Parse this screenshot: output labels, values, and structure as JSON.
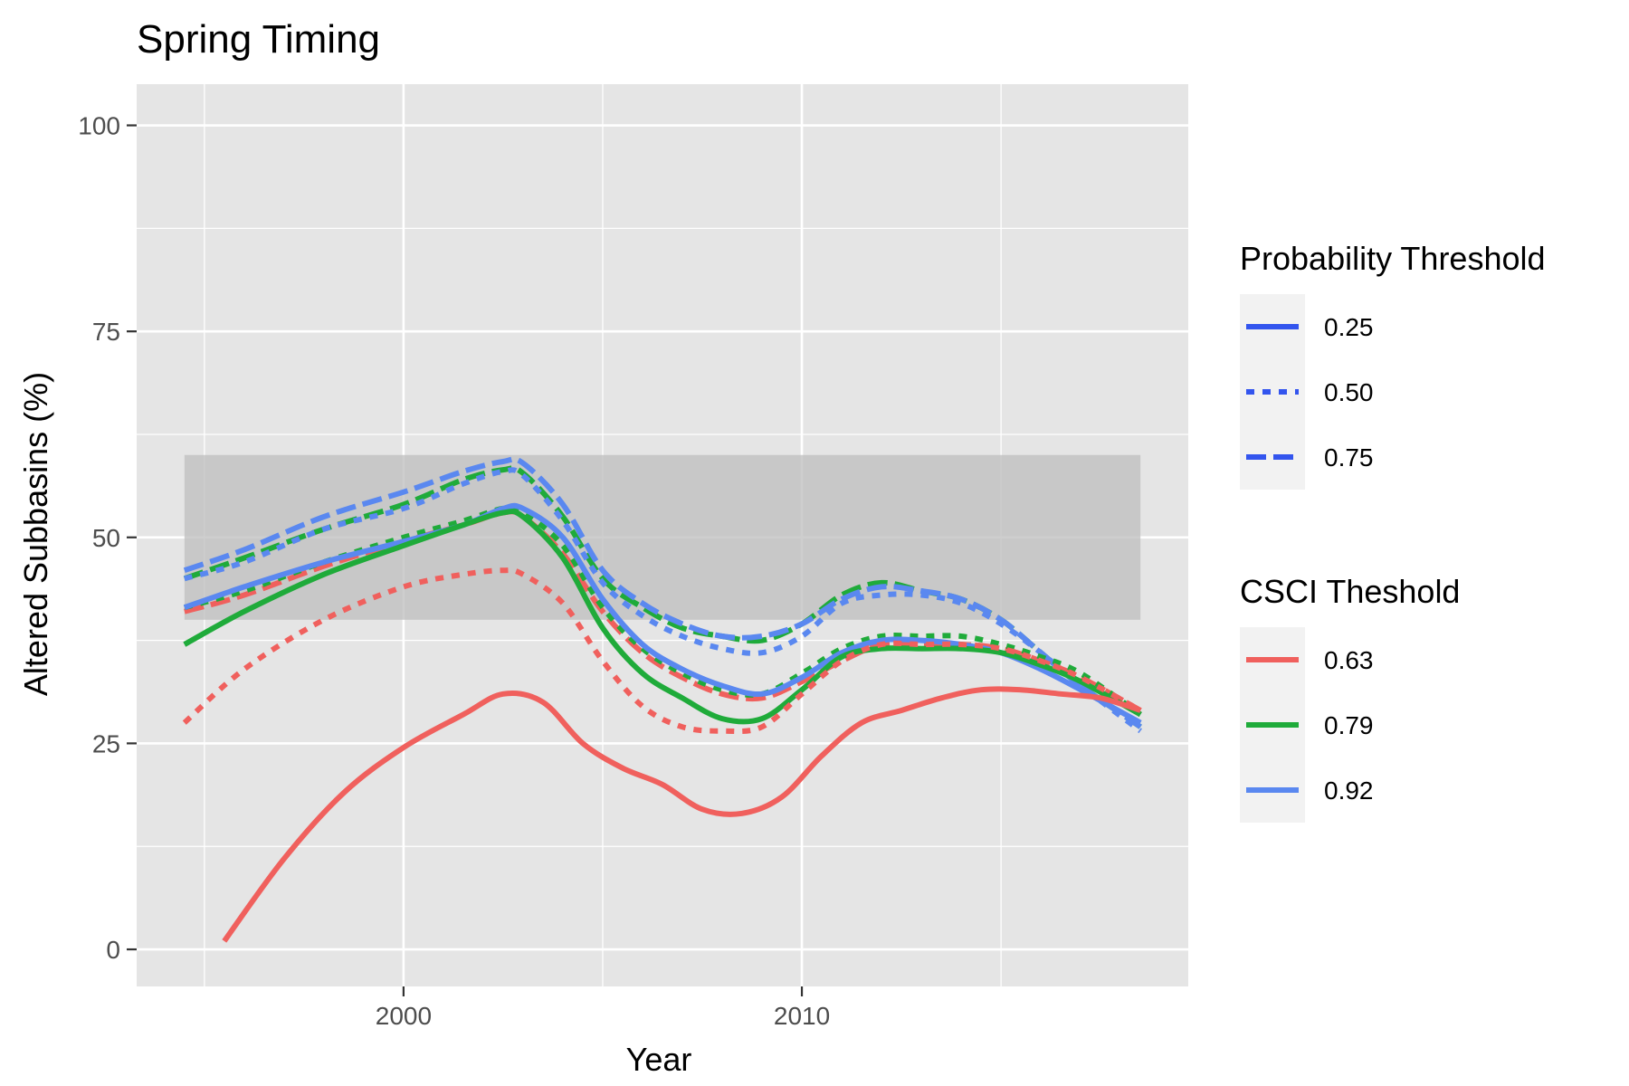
{
  "chart_data": {
    "type": "line",
    "title": "Spring Timing",
    "xlabel": "Year",
    "ylabel": "Altered Subbasins (%)",
    "xlim": [
      1993.3,
      2019.7
    ],
    "ylim": [
      -4.5,
      105
    ],
    "x_ticks": [
      2000,
      2010
    ],
    "x_tick_labels": [
      "2000",
      "2010"
    ],
    "y_ticks": [
      0,
      25,
      50,
      75,
      100
    ],
    "y_tick_labels": [
      "0",
      "25",
      "50",
      "75",
      "100"
    ],
    "grid": true,
    "background": "#e5e5e5",
    "reference_band": {
      "y_from": 40,
      "y_to": 60,
      "x_from": 1994.5,
      "x_to": 2018.5,
      "color": "#bdbdbd"
    },
    "legends": [
      {
        "title": "Probability Threshold",
        "placement": "right",
        "entries": [
          {
            "label": "0.25",
            "linetype": "solid",
            "color": "#3355ee"
          },
          {
            "label": "0.50",
            "linetype": "dotted",
            "color": "#3355ee"
          },
          {
            "label": "0.75",
            "linetype": "dashed",
            "color": "#3355ee"
          }
        ]
      },
      {
        "title": "CSCI Theshold",
        "placement": "right",
        "entries": [
          {
            "label": "0.63",
            "linetype": "solid",
            "color": "#f0605d"
          },
          {
            "label": "0.79",
            "linetype": "solid",
            "color": "#1fab3a"
          },
          {
            "label": "0.92",
            "linetype": "solid",
            "color": "#5a88f0"
          }
        ]
      }
    ],
    "series": [
      {
        "csci": "0.79",
        "probability": "0.75",
        "color": "#1fab3a",
        "linetype": "dashed",
        "x": [
          1994.5,
          1996,
          1998,
          2000,
          2001.5,
          2002.5,
          2003,
          2004,
          2005,
          2006,
          2007,
          2008,
          2009,
          2010,
          2011,
          2012,
          2013,
          2014,
          2015,
          2016,
          2017,
          2018.5
        ],
        "y": [
          45,
          47.5,
          51,
          54,
          57,
          58.2,
          57.8,
          52.5,
          45,
          41.5,
          39,
          38,
          37.5,
          39.5,
          43,
          44.5,
          43.5,
          42.5,
          40,
          36,
          32,
          27
        ]
      },
      {
        "csci": "0.92",
        "probability": "0.75",
        "color": "#5a88f0",
        "linetype": "dashed",
        "x": [
          1994.5,
          1996,
          1998,
          2000,
          2001.5,
          2002.5,
          2003,
          2004,
          2005,
          2006,
          2007,
          2008,
          2009,
          2010,
          2011,
          2012,
          2013,
          2014,
          2015,
          2016,
          2017,
          2018.5
        ],
        "y": [
          46,
          48.5,
          52.5,
          55.5,
          58,
          59.2,
          59,
          54,
          46,
          42,
          39.5,
          38,
          38,
          39.5,
          42.5,
          44,
          43.5,
          42.5,
          40,
          36,
          32,
          27
        ]
      },
      {
        "csci": "0.92",
        "probability": "0.50",
        "color": "#5a88f0",
        "linetype": "dotted",
        "x": [
          1994.5,
          1996,
          1998,
          2000,
          2001.5,
          2002.5,
          2003,
          2004,
          2005,
          2006,
          2007,
          2008,
          2009,
          2010,
          2011,
          2012,
          2013,
          2014,
          2015,
          2016,
          2017,
          2018.5
        ],
        "y": [
          45,
          47,
          51,
          53.5,
          56.5,
          58,
          57.5,
          52,
          44.5,
          40.5,
          38,
          36.5,
          36,
          38,
          42,
          43,
          43,
          42,
          39.5,
          36,
          32,
          26.5
        ]
      },
      {
        "csci": "0.63",
        "probability": "0.75",
        "color": "#f0605d",
        "linetype": "dashed",
        "x": [
          1994.5,
          1996,
          1998,
          2000,
          2001.5,
          2002.5,
          2003,
          2004,
          2005,
          2006,
          2007,
          2008,
          2009,
          2010,
          2011,
          2012,
          2013,
          2014,
          2015,
          2016,
          2017,
          2018.5
        ],
        "y": [
          41,
          43,
          46.5,
          49.5,
          51.5,
          53,
          52.5,
          48,
          41,
          36,
          33,
          31,
          30.5,
          32.5,
          35,
          37,
          37,
          37,
          36.5,
          35,
          33,
          29
        ]
      },
      {
        "csci": "0.79",
        "probability": "0.50",
        "color": "#1fab3a",
        "linetype": "dotted",
        "x": [
          1994.5,
          1996,
          1998,
          2000,
          2001.5,
          2002.5,
          2003,
          2004,
          2005,
          2006,
          2007,
          2008,
          2009,
          2010,
          2011,
          2012,
          2013,
          2014,
          2015,
          2016,
          2017,
          2018.5
        ],
        "y": [
          41.5,
          43.5,
          47,
          50,
          52,
          53.5,
          53,
          49,
          41.5,
          36.5,
          33.5,
          31.5,
          31,
          33.5,
          36.5,
          38,
          38,
          38,
          37,
          35.5,
          33.5,
          28.5
        ]
      },
      {
        "csci": "0.92",
        "probability": "0.25",
        "color": "#5a88f0",
        "linetype": "solid",
        "x": [
          1994.5,
          1996,
          1998,
          2000,
          2001.5,
          2002.5,
          2003,
          2004,
          2005,
          2006,
          2007,
          2008,
          2009,
          2010,
          2011,
          2012,
          2013,
          2014,
          2015,
          2016,
          2017,
          2018.5
        ],
        "y": [
          41.5,
          44,
          47,
          49.5,
          51.5,
          53.5,
          53.5,
          50,
          42.5,
          37,
          34,
          32,
          31,
          33,
          36,
          37.5,
          37.5,
          37,
          36,
          34,
          31.5,
          27.5
        ]
      },
      {
        "csci": "0.79",
        "probability": "0.25",
        "color": "#1fab3a",
        "linetype": "solid",
        "x": [
          1994.5,
          1996,
          1998,
          2000,
          2001.5,
          2002.5,
          2003,
          2004,
          2005,
          2006,
          2007,
          2008,
          2009,
          2010,
          2011,
          2012,
          2013,
          2014,
          2015,
          2016,
          2017,
          2018.5
        ],
        "y": [
          37,
          41,
          45.5,
          49,
          51.5,
          53,
          52.5,
          47.5,
          39,
          33.5,
          30.5,
          28,
          28,
          31.5,
          35.5,
          36.5,
          36.5,
          36.5,
          36,
          34.5,
          32.5,
          28.5
        ]
      },
      {
        "csci": "0.63",
        "probability": "0.50",
        "color": "#f0605d",
        "linetype": "dotted",
        "x": [
          1994.5,
          1996,
          1998,
          2000,
          2001.5,
          2002.5,
          2003,
          2004,
          2005,
          2006,
          2007,
          2008,
          2009,
          2010,
          2011,
          2012,
          2013,
          2014,
          2015,
          2016,
          2017,
          2018.5
        ],
        "y": [
          27.5,
          34,
          40,
          44,
          45.5,
          46,
          45.5,
          42,
          35,
          29.5,
          27,
          26.5,
          27,
          31,
          35,
          37,
          37,
          37,
          36.5,
          35,
          33,
          29
        ]
      },
      {
        "csci": "0.63",
        "probability": "0.25",
        "color": "#f0605d",
        "linetype": "solid",
        "x": [
          1995.5,
          1997,
          1998.5,
          2000,
          2001.5,
          2002.5,
          2003.5,
          2004.5,
          2005.5,
          2006.5,
          2007.5,
          2008.5,
          2009.5,
          2010.5,
          2011.5,
          2012.5,
          2013.5,
          2014.5,
          2015.5,
          2016.5,
          2017.5,
          2018.5
        ],
        "y": [
          1,
          11,
          19,
          24.5,
          28.5,
          31,
          30,
          25,
          22,
          20,
          17,
          16.5,
          18.5,
          23.5,
          27.5,
          29,
          30.5,
          31.5,
          31.5,
          31,
          30.5,
          29
        ]
      }
    ]
  }
}
